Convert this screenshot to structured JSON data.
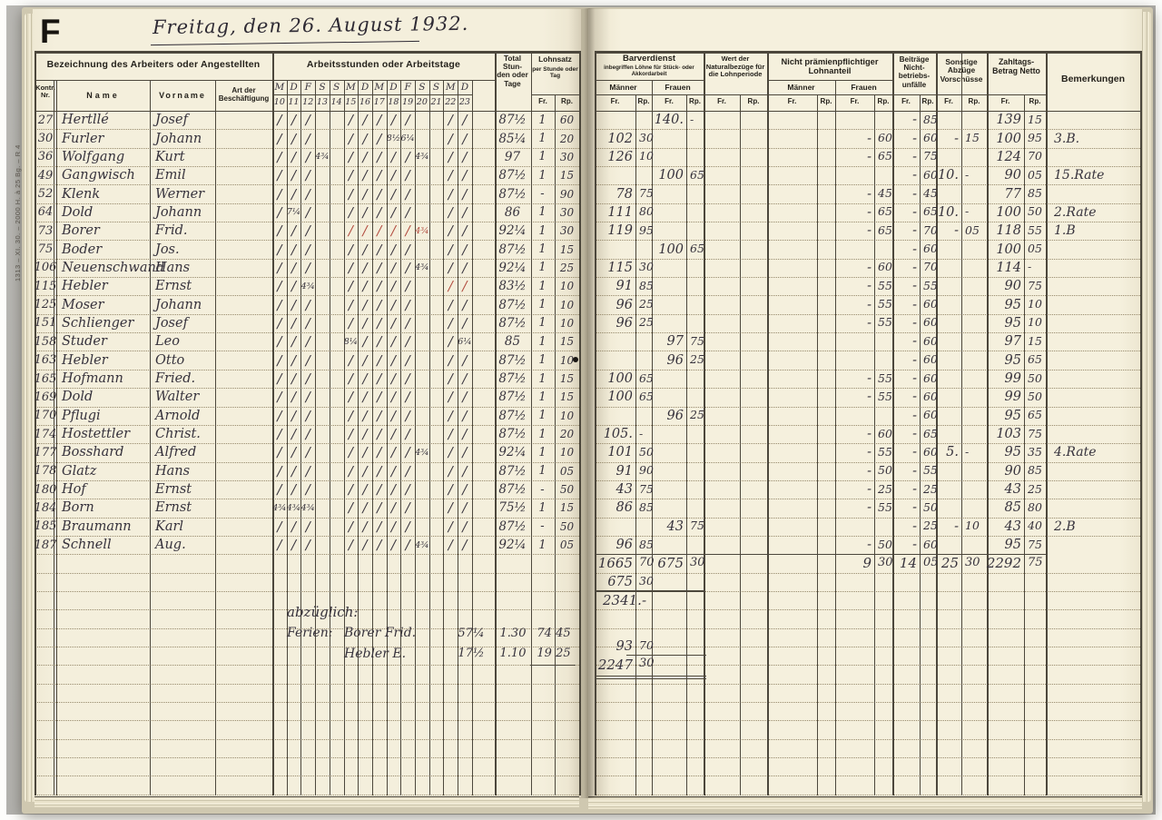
{
  "page_label": "F",
  "title": "Freitag, den 26. August 1932.",
  "margin_imprint": "1313 – XI. 30. – 2000 H. à 25 Bg. – R 4",
  "labels": {
    "fr": "Fr.",
    "rp": "Rp.",
    "maenner": "Männer",
    "frauen": "Frauen"
  },
  "left_table": {
    "group1_title": "Bezeichnung des Arbeiters oder Angestellten",
    "group2_title": "Arbeitsstunden oder Arbeitstage",
    "col_kontr": "Kontr. Nr.",
    "col_name": "Name",
    "col_vorname": "Vorname",
    "col_art": "Art der Beschäftigung",
    "total_header": "Total Stun- den oder Tage",
    "lohnsatz_title": "Lohnsatz",
    "lohnsatz_sub": "per Stunde oder Tag",
    "day_letters": [
      "M",
      "D",
      "F",
      "S",
      "S",
      "M",
      "D",
      "M",
      "D",
      "F",
      "S",
      "S",
      "M",
      "D"
    ],
    "day_numbers": [
      "10",
      "11",
      "12",
      "13",
      "14",
      "15",
      "16",
      "17",
      "18",
      "19",
      "20",
      "21",
      "22",
      "23"
    ],
    "rows": [
      {
        "nr": "27",
        "name": "Hertllé",
        "vorname": "Josef",
        "days": [
          "/",
          "/",
          "/",
          "",
          "",
          "/",
          "/",
          "/",
          "/",
          "/",
          "",
          "",
          "/",
          "/"
        ],
        "total": "87½",
        "rate": [
          "1",
          "60"
        ]
      },
      {
        "nr": "30",
        "name": "Furler",
        "vorname": "Johann",
        "days": [
          "/",
          "/",
          "/",
          "",
          "",
          "/",
          "/",
          "/",
          "8½",
          "6¼",
          "",
          "",
          "/",
          "/"
        ],
        "total": "85¼",
        "rate": [
          "1",
          "20"
        ]
      },
      {
        "nr": "36",
        "name": "Wolfgang",
        "vorname": "Kurt",
        "days": [
          "/",
          "/",
          "/",
          "4¾",
          "",
          "/",
          "/",
          "/",
          "/",
          "/",
          "4¾",
          "",
          "/",
          "/"
        ],
        "total": "97",
        "rate": [
          "1",
          "30"
        ]
      },
      {
        "nr": "49",
        "name": "Gangwisch",
        "vorname": "Emil",
        "days": [
          "/",
          "/",
          "/",
          "",
          "",
          "/",
          "/",
          "/",
          "/",
          "/",
          "",
          "",
          "/",
          "/"
        ],
        "total": "87½",
        "rate": [
          "1",
          "15"
        ]
      },
      {
        "nr": "52",
        "name": "Klenk",
        "vorname": "Werner",
        "days": [
          "/",
          "/",
          "/",
          "",
          "",
          "/",
          "/",
          "/",
          "/",
          "/",
          "",
          "",
          "/",
          "/"
        ],
        "total": "87½",
        "rate": [
          "-",
          "90"
        ]
      },
      {
        "nr": "64",
        "name": "Dold",
        "vorname": "Johann",
        "days": [
          "/",
          "7¼",
          "/",
          "",
          "",
          "/",
          "/",
          "/",
          "/",
          "/",
          "",
          "",
          "/",
          "/"
        ],
        "total": "86",
        "rate": [
          "1",
          "30"
        ]
      },
      {
        "nr": "73",
        "name": "Borer",
        "vorname": "Frid.",
        "days": [
          "/",
          "/",
          "/",
          "",
          "",
          "/",
          "/",
          "/",
          "/",
          "/",
          "4¾",
          "",
          "/",
          "/"
        ],
        "red_days": [
          5,
          6,
          7,
          8,
          9,
          10
        ],
        "total": "92¼",
        "rate": [
          "1",
          "30"
        ]
      },
      {
        "nr": "75",
        "name": "Boder",
        "vorname": "Jos.",
        "days": [
          "/",
          "/",
          "/",
          "",
          "",
          "/",
          "/",
          "/",
          "/",
          "/",
          "",
          "",
          "/",
          "/"
        ],
        "total": "87½",
        "rate": [
          "1",
          "15"
        ]
      },
      {
        "nr": "106",
        "name": "Neuenschwand",
        "vorname": "Hans",
        "days": [
          "/",
          "/",
          "/",
          "",
          "",
          "/",
          "/",
          "/",
          "/",
          "/",
          "4¾",
          "",
          "/",
          "/"
        ],
        "total": "92¼",
        "rate": [
          "1",
          "25"
        ]
      },
      {
        "nr": "115",
        "name": "Hebler",
        "vorname": "Ernst",
        "days": [
          "/",
          "/",
          "4¾",
          "",
          "",
          "/",
          "/",
          "/",
          "/",
          "/",
          "",
          "",
          "/",
          "/"
        ],
        "red_days": [
          12,
          13
        ],
        "total": "83½",
        "rate": [
          "1",
          "10"
        ]
      },
      {
        "nr": "125",
        "name": "Moser",
        "vorname": "Johann",
        "days": [
          "/",
          "/",
          "/",
          "",
          "",
          "/",
          "/",
          "/",
          "/",
          "/",
          "",
          "",
          "/",
          "/"
        ],
        "total": "87½",
        "rate": [
          "1",
          "10"
        ]
      },
      {
        "nr": "151",
        "name": "Schlienger",
        "vorname": "Josef",
        "days": [
          "/",
          "/",
          "/",
          "",
          "",
          "/",
          "/",
          "/",
          "/",
          "/",
          "",
          "",
          "/",
          "/"
        ],
        "total": "87½",
        "rate": [
          "1",
          "10"
        ]
      },
      {
        "nr": "158",
        "name": "Studer",
        "vorname": "Leo",
        "days": [
          "/",
          "/",
          "/",
          "",
          "",
          "8¼",
          "/",
          "/",
          "/",
          "/",
          "",
          "",
          "/",
          "6¼"
        ],
        "total": "85",
        "rate": [
          "1",
          "15"
        ]
      },
      {
        "nr": "163",
        "name": "Hebler",
        "vorname": "Otto",
        "days": [
          "/",
          "/",
          "/",
          "",
          "",
          "/",
          "/",
          "/",
          "/",
          "/",
          "",
          "",
          "/",
          "/"
        ],
        "total": "87½",
        "rate": [
          "1",
          "10"
        ],
        "ink_blob": true
      },
      {
        "nr": "165",
        "name": "Hofmann",
        "vorname": "Fried.",
        "days": [
          "/",
          "/",
          "/",
          "",
          "",
          "/",
          "/",
          "/",
          "/",
          "/",
          "",
          "",
          "/",
          "/"
        ],
        "total": "87½",
        "rate": [
          "1",
          "15"
        ]
      },
      {
        "nr": "169",
        "name": "Dold",
        "vorname": "Walter",
        "days": [
          "/",
          "/",
          "/",
          "",
          "",
          "/",
          "/",
          "/",
          "/",
          "/",
          "",
          "",
          "/",
          "/"
        ],
        "total": "87½",
        "rate": [
          "1",
          "15"
        ]
      },
      {
        "nr": "170",
        "name": "Pflugi",
        "vorname": "Arnold",
        "days": [
          "/",
          "/",
          "/",
          "",
          "",
          "/",
          "/",
          "/",
          "/",
          "/",
          "",
          "",
          "/",
          "/"
        ],
        "total": "87½",
        "rate": [
          "1",
          "10"
        ]
      },
      {
        "nr": "174",
        "name": "Hostettler",
        "vorname": "Christ.",
        "days": [
          "/",
          "/",
          "/",
          "",
          "",
          "/",
          "/",
          "/",
          "/",
          "/",
          "",
          "",
          "/",
          "/"
        ],
        "total": "87½",
        "rate": [
          "1",
          "20"
        ]
      },
      {
        "nr": "177",
        "name": "Bosshard",
        "vorname": "Alfred",
        "days": [
          "/",
          "/",
          "/",
          "",
          "",
          "/",
          "/",
          "/",
          "/",
          "/",
          "4¾",
          "",
          "/",
          "/"
        ],
        "total": "92¼",
        "rate": [
          "1",
          "10"
        ]
      },
      {
        "nr": "178",
        "name": "Glatz",
        "vorname": "Hans",
        "days": [
          "/",
          "/",
          "/",
          "",
          "",
          "/",
          "/",
          "/",
          "/",
          "/",
          "",
          "",
          "/",
          "/"
        ],
        "total": "87½",
        "rate": [
          "1",
          "05"
        ]
      },
      {
        "nr": "180",
        "name": "Hof",
        "vorname": "Ernst",
        "days": [
          "/",
          "/",
          "/",
          "",
          "",
          "/",
          "/",
          "/",
          "/",
          "/",
          "",
          "",
          "/",
          "/"
        ],
        "total": "87½",
        "rate": [
          "-",
          "50"
        ]
      },
      {
        "nr": "184",
        "name": "Born",
        "vorname": "Ernst",
        "days": [
          "4¾",
          "4¾",
          "4¾",
          "",
          "",
          "/",
          "/",
          "/",
          "/",
          "/",
          "",
          "",
          "/",
          "/"
        ],
        "total": "75½",
        "rate": [
          "1",
          "15"
        ]
      },
      {
        "nr": "185",
        "name": "Braumann",
        "vorname": "Karl",
        "days": [
          "/",
          "/",
          "/",
          "",
          "",
          "/",
          "/",
          "/",
          "/",
          "/",
          "",
          "",
          "/",
          "/"
        ],
        "total": "87½",
        "rate": [
          "-",
          "50"
        ]
      },
      {
        "nr": "187",
        "name": "Schnell",
        "vorname": "Aug.",
        "days": [
          "/",
          "/",
          "/",
          "",
          "",
          "/",
          "/",
          "/",
          "/",
          "/",
          "4¾",
          "",
          "/",
          "/"
        ],
        "total": "92¼",
        "rate": [
          "1",
          "05"
        ]
      }
    ],
    "footnote": {
      "label1": "abzüglich:",
      "label2": "Ferien:",
      "rows": [
        {
          "name": "Borer Frid.",
          "hours": "57¼",
          "rate": "1.30",
          "amount": "74 45"
        },
        {
          "name": "Hebler E.",
          "hours": "17½",
          "rate": "1.10",
          "amount": "19 25"
        }
      ]
    }
  },
  "right_table": {
    "bar_title": "Barverdienst",
    "bar_sub": "inbegriffen Löhne für Stück- oder Akkordarbeit",
    "wert_header": "Wert der Naturalbezüge für die Lohnperiode",
    "np_header": "Nicht prämienpflichtiger Lohnanteil",
    "beitraege_header": "Beiträge Nicht- betriebs- unfälle",
    "sonstige_header": "Sonstige Abzüge Vorschüsse",
    "zahltag_header": "Zahltags- Betrag Netto",
    "bemerkungen_header": "Bemerkungen",
    "rows": [
      {
        "f": [
          "140.",
          "-"
        ],
        "beit": [
          "-",
          "85"
        ],
        "net": [
          "139",
          "15"
        ],
        "bem": ""
      },
      {
        "m": [
          "102",
          "30"
        ],
        "np": [
          "-",
          "60"
        ],
        "beit": [
          "-",
          "60"
        ],
        "sonst": [
          "-",
          "15"
        ],
        "net": [
          "100",
          "95"
        ],
        "bem": "3.B."
      },
      {
        "m": [
          "126",
          "10"
        ],
        "np": [
          "-",
          "65"
        ],
        "beit": [
          "-",
          "75"
        ],
        "net": [
          "124",
          "70"
        ],
        "bem": ""
      },
      {
        "f": [
          "100",
          "65"
        ],
        "beit": [
          "-",
          "60"
        ],
        "sonst": [
          "10.",
          "-"
        ],
        "net": [
          "90",
          "05"
        ],
        "bem": "15.Rate"
      },
      {
        "m": [
          "78",
          "75"
        ],
        "np": [
          "-",
          "45"
        ],
        "beit": [
          "-",
          "45"
        ],
        "net": [
          "77",
          "85"
        ],
        "bem": ""
      },
      {
        "m": [
          "111",
          "80"
        ],
        "np": [
          "-",
          "65"
        ],
        "beit": [
          "-",
          "65"
        ],
        "sonst": [
          "10.",
          "-"
        ],
        "net": [
          "100",
          "50"
        ],
        "bem": "2.Rate"
      },
      {
        "m": [
          "119",
          "95"
        ],
        "np": [
          "-",
          "65"
        ],
        "beit": [
          "-",
          "70"
        ],
        "sonst": [
          "-",
          "05"
        ],
        "net": [
          "118",
          "55"
        ],
        "bem": "1.B"
      },
      {
        "f": [
          "100",
          "65"
        ],
        "beit": [
          "-",
          "60"
        ],
        "net": [
          "100",
          "05"
        ],
        "bem": ""
      },
      {
        "m": [
          "115",
          "30"
        ],
        "np": [
          "-",
          "60"
        ],
        "beit": [
          "-",
          "70"
        ],
        "net": [
          "114",
          "-"
        ],
        "bem": ""
      },
      {
        "m": [
          "91",
          "85"
        ],
        "np": [
          "-",
          "55"
        ],
        "beit": [
          "-",
          "55"
        ],
        "net": [
          "90",
          "75"
        ],
        "bem": ""
      },
      {
        "m": [
          "96",
          "25"
        ],
        "np": [
          "-",
          "55"
        ],
        "beit": [
          "-",
          "60"
        ],
        "net": [
          "95",
          "10"
        ],
        "bem": ""
      },
      {
        "m": [
          "96",
          "25"
        ],
        "np": [
          "-",
          "55"
        ],
        "beit": [
          "-",
          "60"
        ],
        "net": [
          "95",
          "10"
        ],
        "bem": ""
      },
      {
        "f": [
          "97",
          "75"
        ],
        "beit": [
          "-",
          "60"
        ],
        "net": [
          "97",
          "15"
        ],
        "bem": ""
      },
      {
        "f": [
          "96",
          "25"
        ],
        "beit": [
          "-",
          "60"
        ],
        "net": [
          "95",
          "65"
        ],
        "bem": ""
      },
      {
        "m": [
          "100",
          "65"
        ],
        "np": [
          "-",
          "55"
        ],
        "beit": [
          "-",
          "60"
        ],
        "net": [
          "99",
          "50"
        ],
        "bem": ""
      },
      {
        "m": [
          "100",
          "65"
        ],
        "np": [
          "-",
          "55"
        ],
        "beit": [
          "-",
          "60"
        ],
        "net": [
          "99",
          "50"
        ],
        "bem": ""
      },
      {
        "f": [
          "96",
          "25"
        ],
        "beit": [
          "-",
          "60"
        ],
        "net": [
          "95",
          "65"
        ],
        "bem": ""
      },
      {
        "m": [
          "105.",
          "-"
        ],
        "np": [
          "-",
          "60"
        ],
        "beit": [
          "-",
          "65"
        ],
        "net": [
          "103",
          "75"
        ],
        "bem": ""
      },
      {
        "m": [
          "101",
          "50"
        ],
        "np": [
          "-",
          "55"
        ],
        "beit": [
          "-",
          "60"
        ],
        "sonst": [
          "5.",
          "-"
        ],
        "net": [
          "95",
          "35"
        ],
        "bem": "4.Rate"
      },
      {
        "m": [
          "91",
          "90"
        ],
        "np": [
          "-",
          "50"
        ],
        "beit": [
          "-",
          "55"
        ],
        "net": [
          "90",
          "85"
        ],
        "bem": ""
      },
      {
        "m": [
          "43",
          "75"
        ],
        "np": [
          "-",
          "25"
        ],
        "beit": [
          "-",
          "25"
        ],
        "net": [
          "43",
          "25"
        ],
        "bem": ""
      },
      {
        "m": [
          "86",
          "85"
        ],
        "np": [
          "-",
          "55"
        ],
        "beit": [
          "-",
          "50"
        ],
        "net": [
          "85",
          "80"
        ],
        "bem": ""
      },
      {
        "f": [
          "43",
          "75"
        ],
        "beit": [
          "-",
          "25"
        ],
        "sonst": [
          "-",
          "10"
        ],
        "net": [
          "43",
          "40"
        ],
        "bem": "2.B"
      },
      {
        "m": [
          "96",
          "85"
        ],
        "np": [
          "-",
          "50"
        ],
        "beit": [
          "-",
          "60"
        ],
        "net": [
          "95",
          "75"
        ],
        "bem": ""
      }
    ],
    "totals": {
      "m": [
        "1665",
        "70"
      ],
      "f": [
        "675",
        "30"
      ],
      "np": [
        "9",
        "30"
      ],
      "beit": [
        "14",
        "05"
      ],
      "sonst": [
        "25",
        "30"
      ],
      "net": [
        "2292",
        "75"
      ]
    },
    "below_totals": {
      "frauen_carry": [
        "675",
        "30"
      ],
      "grand_total": "2341.-",
      "ferien_sum": [
        "93",
        "70"
      ],
      "final_total": [
        "2247",
        "30"
      ]
    }
  }
}
